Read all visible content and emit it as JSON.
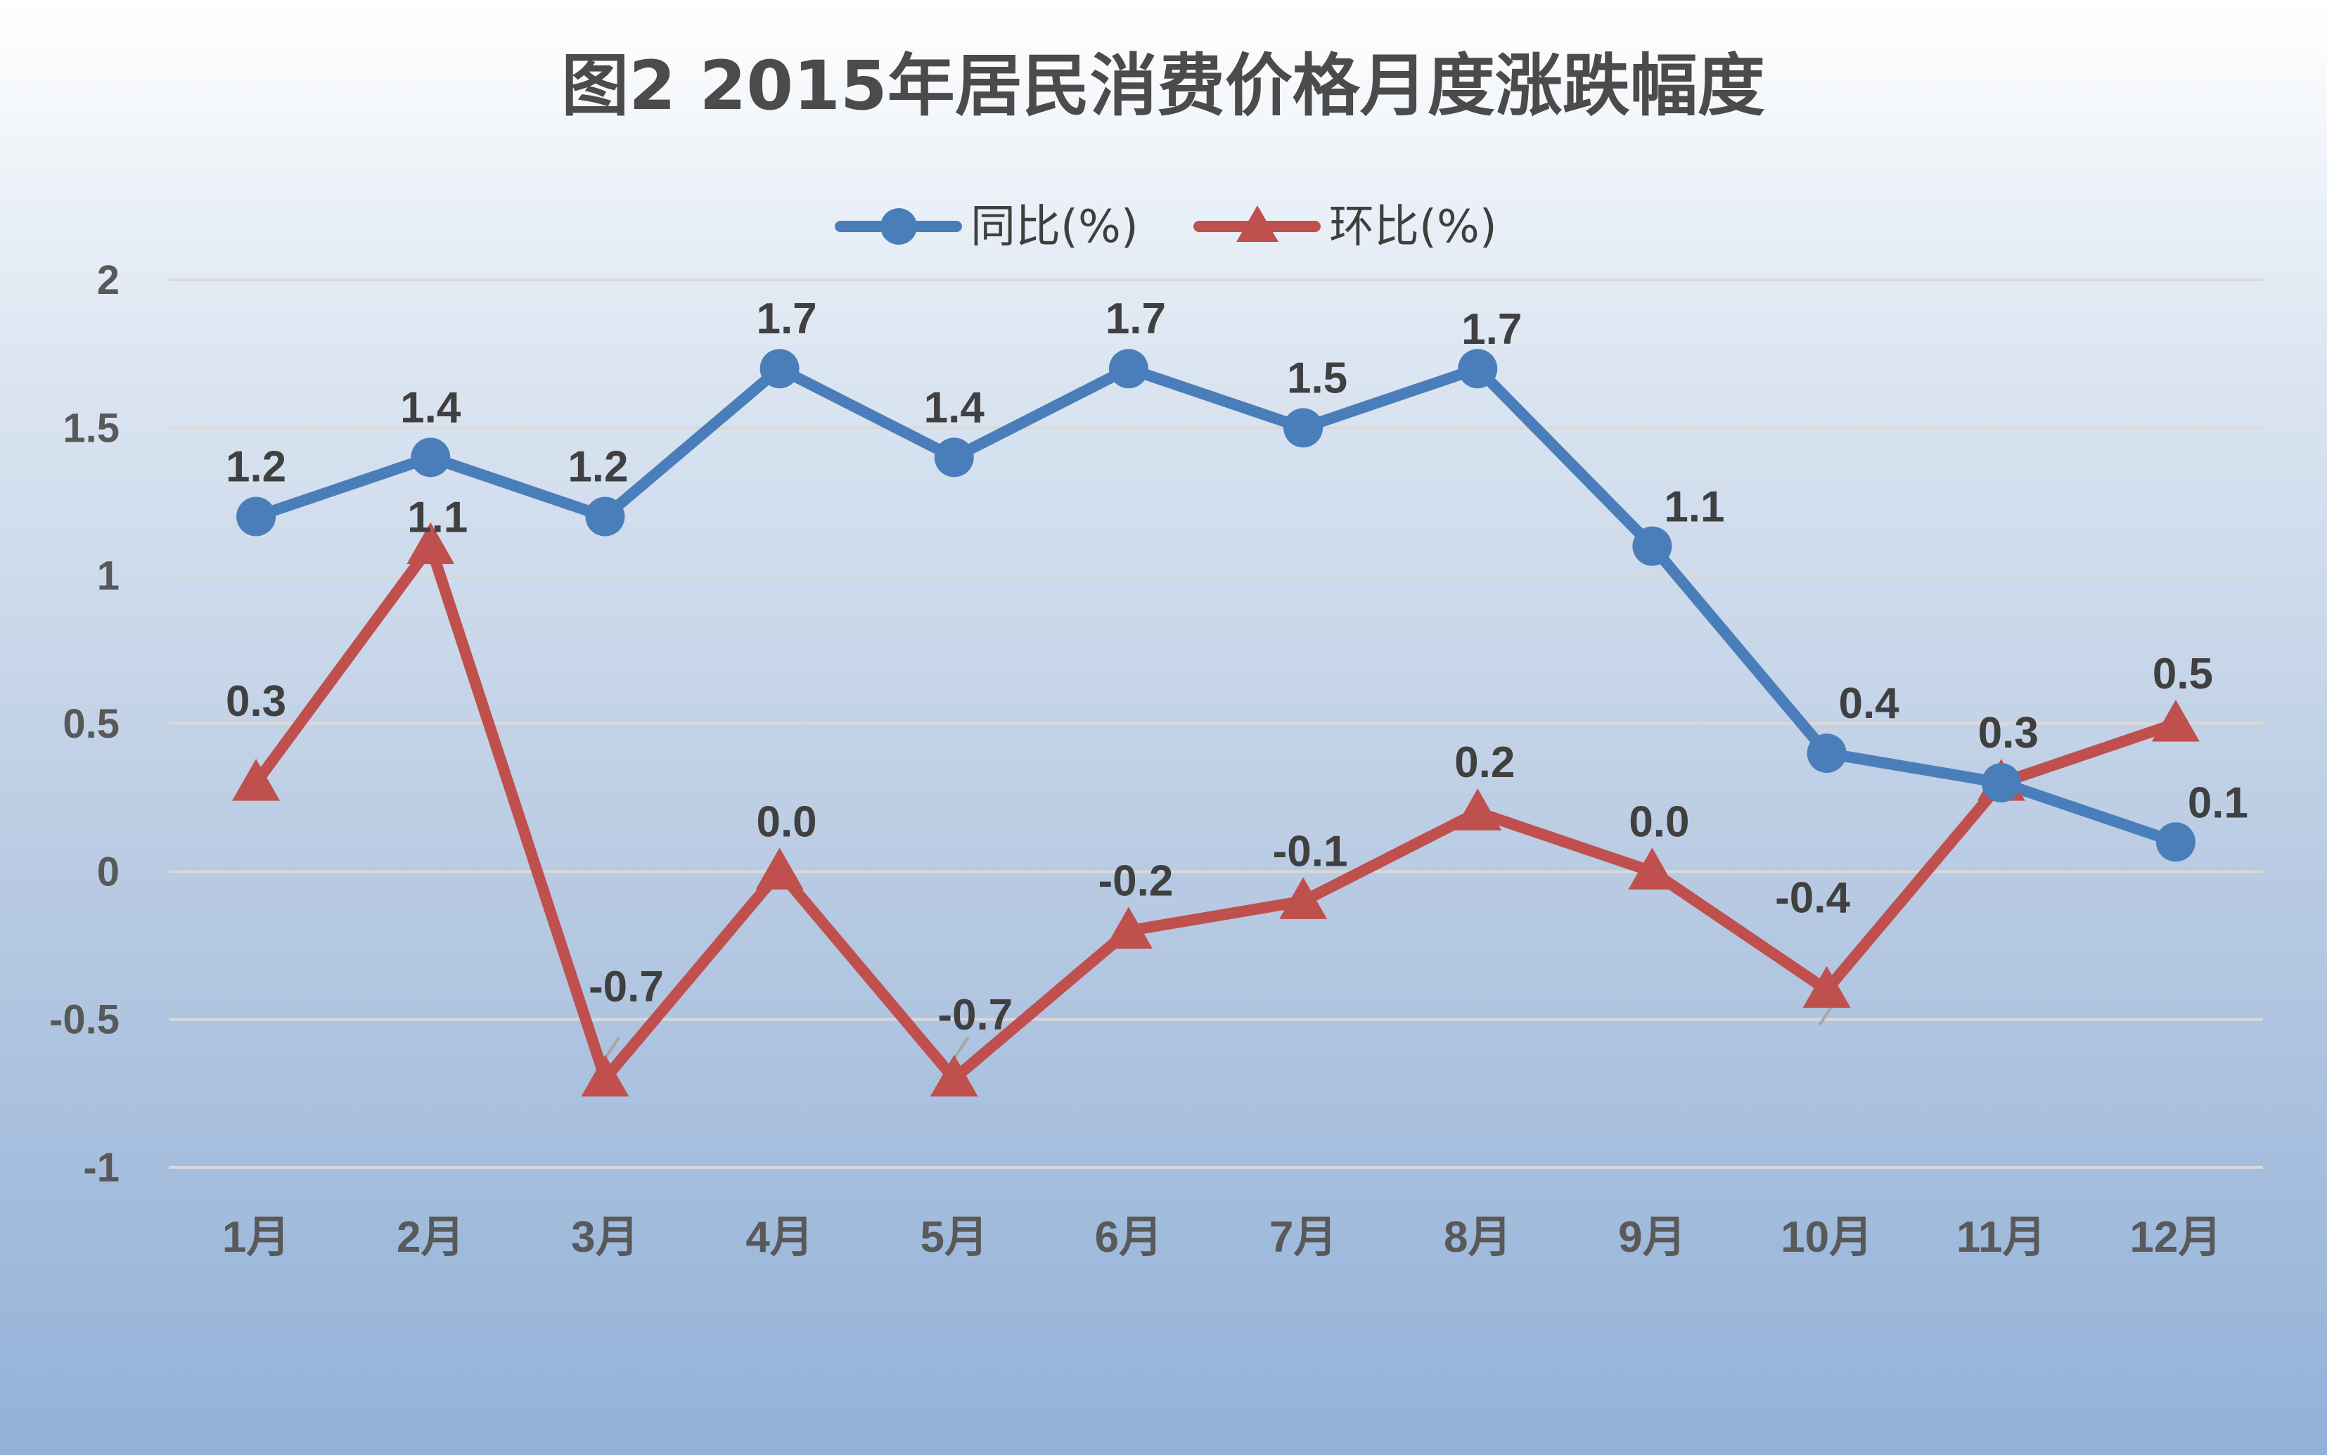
{
  "chart_data": {
    "type": "line",
    "title": "图2  2015年居民消费价格月度涨跌幅度",
    "xlabel": "",
    "ylabel": "",
    "categories": [
      "1月",
      "2月",
      "3月",
      "4月",
      "5月",
      "6月",
      "7月",
      "8月",
      "9月",
      "10月",
      "11月",
      "12月"
    ],
    "ylim": [
      -1,
      2
    ],
    "yticks": [
      2,
      1.5,
      1,
      0.5,
      0,
      -0.5,
      -1
    ],
    "grid": true,
    "legend_position": "top-center",
    "series": [
      {
        "name": "同比(%)",
        "marker": "circle",
        "color": "#4a7ebb",
        "values": [
          1.2,
          1.4,
          1.2,
          1.7,
          1.4,
          1.7,
          1.5,
          1.7,
          1.1,
          0.4,
          0.3,
          0.1
        ],
        "labels": [
          "1.2",
          "1.4",
          "1.2",
          "1.7",
          "1.4",
          "1.7",
          "1.5",
          "1.7",
          "1.1",
          "0.4",
          "0.3",
          "0.1"
        ]
      },
      {
        "name": "环比(%)",
        "marker": "triangle",
        "color": "#c0504d",
        "values": [
          0.3,
          1.1,
          -0.7,
          0.0,
          -0.7,
          -0.2,
          -0.1,
          0.2,
          0.0,
          -0.4,
          0.3,
          0.5
        ],
        "labels": [
          "0.3",
          "1.1",
          "-0.7",
          "0.0",
          "-0.7",
          "-0.2",
          "-0.1",
          "0.2",
          "0.0",
          "-0.4",
          "0.3",
          "0.5"
        ]
      }
    ]
  }
}
